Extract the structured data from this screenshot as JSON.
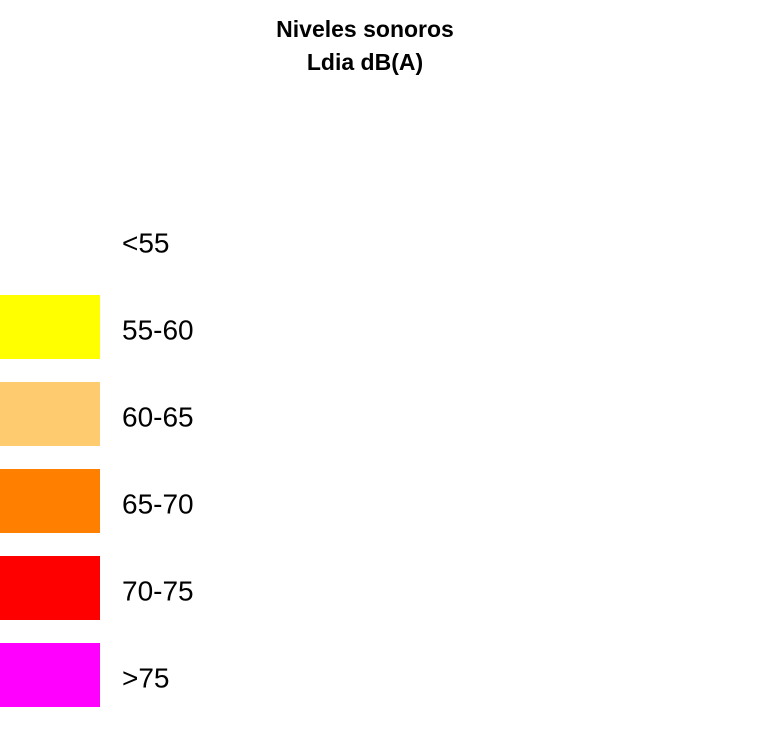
{
  "legend": {
    "title": [
      "Niveles sonoros",
      "Ldia dB(A)"
    ],
    "items": [
      {
        "label": "<55",
        "color": "#ffffff"
      },
      {
        "label": "55-60",
        "color": "#ffff00"
      },
      {
        "label": "60-65",
        "color": "#fecb6f"
      },
      {
        "label": "65-70",
        "color": "#ff8000"
      },
      {
        "label": "70-75",
        "color": "#ff0000"
      },
      {
        "label": ">75",
        "color": "#ff00ff"
      }
    ]
  }
}
